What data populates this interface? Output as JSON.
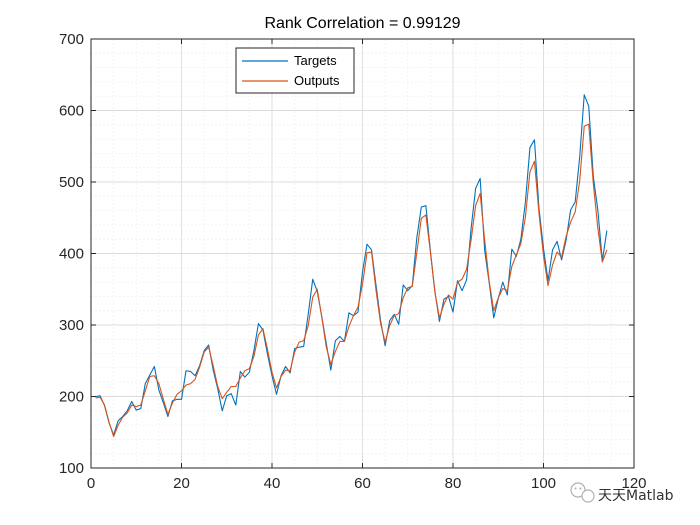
{
  "chart_data": {
    "type": "line",
    "title": "Rank Correlation = 0.99129",
    "xlabel": "",
    "ylabel": "",
    "xlim": [
      0,
      120
    ],
    "ylim": [
      100,
      700
    ],
    "xticks": [
      0,
      20,
      40,
      60,
      80,
      100,
      120
    ],
    "yticks": [
      100,
      200,
      300,
      400,
      500,
      600,
      700
    ],
    "xtick_labels": [
      "0",
      "20",
      "40",
      "60",
      "80",
      "100",
      "120"
    ],
    "ytick_labels": [
      "100",
      "200",
      "300",
      "400",
      "500",
      "600",
      "700"
    ],
    "grid": true,
    "minor_grid": true,
    "legend_position": "top-center",
    "x": [
      1,
      2,
      3,
      4,
      5,
      6,
      7,
      8,
      9,
      10,
      11,
      12,
      13,
      14,
      15,
      16,
      17,
      18,
      19,
      20,
      21,
      22,
      23,
      24,
      25,
      26,
      27,
      28,
      29,
      30,
      31,
      32,
      33,
      34,
      35,
      36,
      37,
      38,
      39,
      40,
      41,
      42,
      43,
      44,
      45,
      46,
      47,
      48,
      49,
      50,
      51,
      52,
      53,
      54,
      55,
      56,
      57,
      58,
      59,
      60,
      61,
      62,
      63,
      64,
      65,
      66,
      67,
      68,
      69,
      70,
      71,
      72,
      73,
      74,
      75,
      76,
      77,
      78,
      79,
      80,
      81,
      82,
      83,
      84,
      85,
      86,
      87,
      88,
      89,
      90,
      91,
      92,
      93,
      94,
      95,
      96,
      97,
      98,
      99,
      100,
      101,
      102,
      103,
      104,
      105,
      106,
      107,
      108,
      109,
      110,
      111,
      112,
      113,
      114
    ],
    "series": [
      {
        "name": "Targets",
        "color": "#0072BD",
        "values": [
          200,
          201,
          187,
          163,
          146,
          166,
          172,
          180,
          193,
          181,
          183,
          218,
          230,
          242,
          209,
          191,
          172,
          194,
          196,
          196,
          236,
          235,
          229,
          243,
          264,
          272,
          237,
          211,
          180,
          201,
          204,
          188,
          235,
          227,
          234,
          264,
          302,
          293,
          259,
          229,
          203,
          229,
          242,
          233,
          267,
          269,
          270,
          315,
          364,
          347,
          312,
          274,
          237,
          278,
          284,
          277,
          317,
          313,
          318,
          374,
          413,
          405,
          355,
          306,
          271,
          306,
          315,
          301,
          356,
          348,
          355,
          422,
          465,
          467,
          404,
          347,
          305,
          336,
          340,
          318,
          362,
          348,
          363,
          435,
          491,
          505,
          404,
          359,
          310,
          337,
          360,
          342,
          406,
          396,
          420,
          472,
          548,
          559,
          463,
          407,
          362,
          405,
          417,
          391,
          419,
          461,
          472,
          535,
          622,
          606,
          508,
          461,
          390,
          432
        ]
      },
      {
        "name": "Outputs",
        "color": "#D95319",
        "values": [
          198,
          199,
          188,
          164,
          144,
          160,
          171,
          177,
          188,
          186,
          188,
          208,
          228,
          229,
          218,
          196,
          175,
          191,
          203,
          208,
          216,
          218,
          224,
          241,
          262,
          269,
          243,
          214,
          197,
          206,
          214,
          214,
          226,
          236,
          239,
          256,
          286,
          295,
          266,
          234,
          212,
          228,
          237,
          236,
          262,
          276,
          278,
          299,
          339,
          350,
          311,
          269,
          245,
          263,
          277,
          277,
          298,
          313,
          325,
          357,
          401,
          402,
          348,
          302,
          276,
          299,
          313,
          316,
          338,
          352,
          354,
          401,
          449,
          454,
          402,
          346,
          310,
          329,
          342,
          336,
          360,
          364,
          378,
          419,
          467,
          484,
          419,
          361,
          320,
          338,
          351,
          348,
          382,
          398,
          414,
          451,
          514,
          529,
          456,
          397,
          355,
          384,
          402,
          395,
          424,
          444,
          458,
          502,
          578,
          581,
          498,
          436,
          388,
          405
        ]
      }
    ]
  },
  "watermark": {
    "text": "天天Matlab"
  }
}
